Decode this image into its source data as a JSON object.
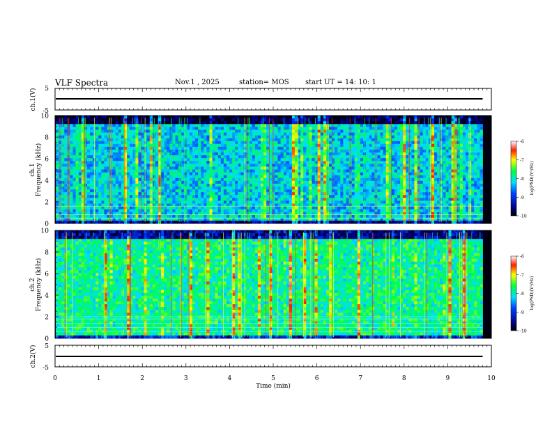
{
  "header": {
    "title": "VLF Spectra",
    "date": "Nov.1 , 2025",
    "station": "station= MOS",
    "start": "start UT = 14: 10: 1"
  },
  "chart_data": [
    {
      "type": "line",
      "name": "ch1-voltage",
      "ylabel": "ch.1(V)",
      "ylim": [
        -5,
        5
      ],
      "yticks": [
        "5",
        "-5"
      ],
      "series": [
        {
          "name": "ch.1",
          "approx_level": 0
        }
      ]
    },
    {
      "type": "heatmap",
      "name": "ch1-spectrogram",
      "ylabel_line1": "ch.1",
      "ylabel_line2": "Frequency (kHz)",
      "ylim": [
        0,
        10
      ],
      "yticks": [
        "0",
        "2",
        "4",
        "6",
        "8",
        "10"
      ],
      "colorbar": {
        "label": "log(PSD)(V²/Hz)",
        "range": [
          -10,
          -6
        ],
        "ticks": [
          "-6",
          "-7",
          "-8",
          "-9",
          "-10"
        ]
      },
      "data_end_min": 9.8,
      "reference_lines_khz": [
        0.5,
        0.8,
        1.6
      ]
    },
    {
      "type": "heatmap",
      "name": "ch2-spectrogram",
      "ylabel_line1": "ch.2",
      "ylabel_line2": "Frequency (kHz)",
      "ylim": [
        0,
        10
      ],
      "yticks": [
        "0",
        "2",
        "4",
        "6",
        "8",
        "10"
      ],
      "colorbar": {
        "label": "log(PSD)(V²/Hz)",
        "range": [
          -10,
          -6
        ],
        "ticks": [
          "-6",
          "-7",
          "-8",
          "-9",
          "-10"
        ]
      },
      "data_end_min": 9.8,
      "reference_lines_khz": [
        0.6,
        1.0,
        1.4,
        1.8,
        2.0
      ]
    },
    {
      "type": "line",
      "name": "ch2-voltage",
      "ylabel": "ch.2(V)",
      "ylim": [
        -5,
        5
      ],
      "yticks": [
        "5",
        "-5"
      ],
      "series": [
        {
          "name": "ch.2",
          "approx_level": 0
        }
      ]
    }
  ],
  "x_axis": {
    "label": "Time (min)",
    "range": [
      0,
      10
    ],
    "ticks": [
      "0",
      "1",
      "2",
      "3",
      "4",
      "5",
      "6",
      "7",
      "8",
      "9",
      "10"
    ]
  }
}
